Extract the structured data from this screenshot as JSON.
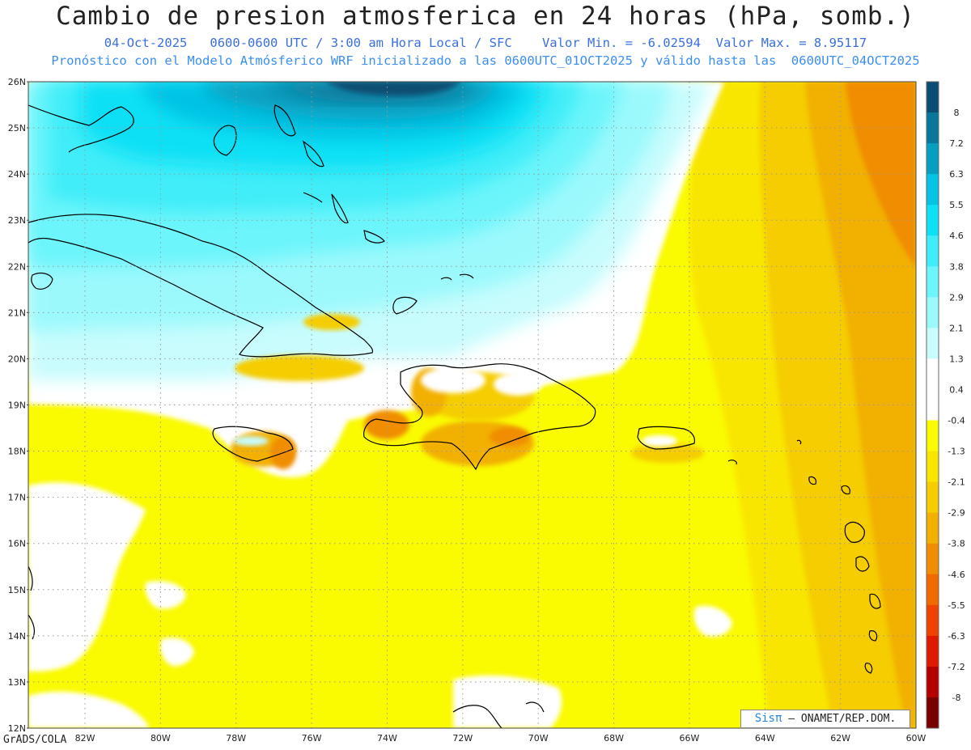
{
  "title": "Cambio de presion atmosferica en 24 horas (hPa, somb.)",
  "subtitle1": "04-Oct-2025   0600-0600 UTC / 3:00 am Hora Local / SFC    Valor Min. = -6.02594  Valor Max. = 8.95117",
  "subtitle2": "Pronóstico con el Modelo Atmósferico WRF inicializado a las 0600UTC_01OCT2025 y válido hasta las  0600UTC_04OCT2025",
  "credit": "GrADS/COLA",
  "attribution": {
    "logo": "Sisπ",
    "text": "– ONAMET/REP.DOM."
  },
  "map": {
    "lon_range": [
      -83.5,
      -60
    ],
    "lat_range": [
      12,
      26
    ],
    "lat_labels": [
      "26N",
      "25N",
      "24N",
      "23N",
      "22N",
      "21N",
      "20N",
      "19N",
      "18N",
      "17N",
      "16N",
      "15N",
      "14N",
      "13N",
      "12N"
    ],
    "lon_labels": [
      "82W",
      "80W",
      "78W",
      "76W",
      "74W",
      "72W",
      "70W",
      "68W",
      "66W",
      "64W",
      "62W",
      "60W"
    ]
  },
  "colorbar": {
    "labels": [
      "8",
      "7.2",
      "6.3",
      "5.5",
      "4.6",
      "3.8",
      "2.9",
      "2.1",
      "1.3",
      "0.4",
      "-0.4",
      "-1.3",
      "-2.1",
      "-2.9",
      "-3.8",
      "-4.6",
      "-5.5",
      "-6.3",
      "-7.2",
      "-8"
    ],
    "colors": [
      "#0a4f73",
      "#08789a",
      "#079fc0",
      "#04c3e4",
      "#0ee0f5",
      "#3fedf8",
      "#6cf5fb",
      "#9bf9fc",
      "#c8fcfd",
      "#ffffff",
      "#ffffff",
      "#fafa00",
      "#f9e600",
      "#f5cd00",
      "#f2b000",
      "#f08d00",
      "#f06a00",
      "#f04200",
      "#e01a00",
      "#b40000",
      "#780000"
    ]
  },
  "colors": {
    "land_outline": "#000000",
    "grid": "#999999"
  }
}
